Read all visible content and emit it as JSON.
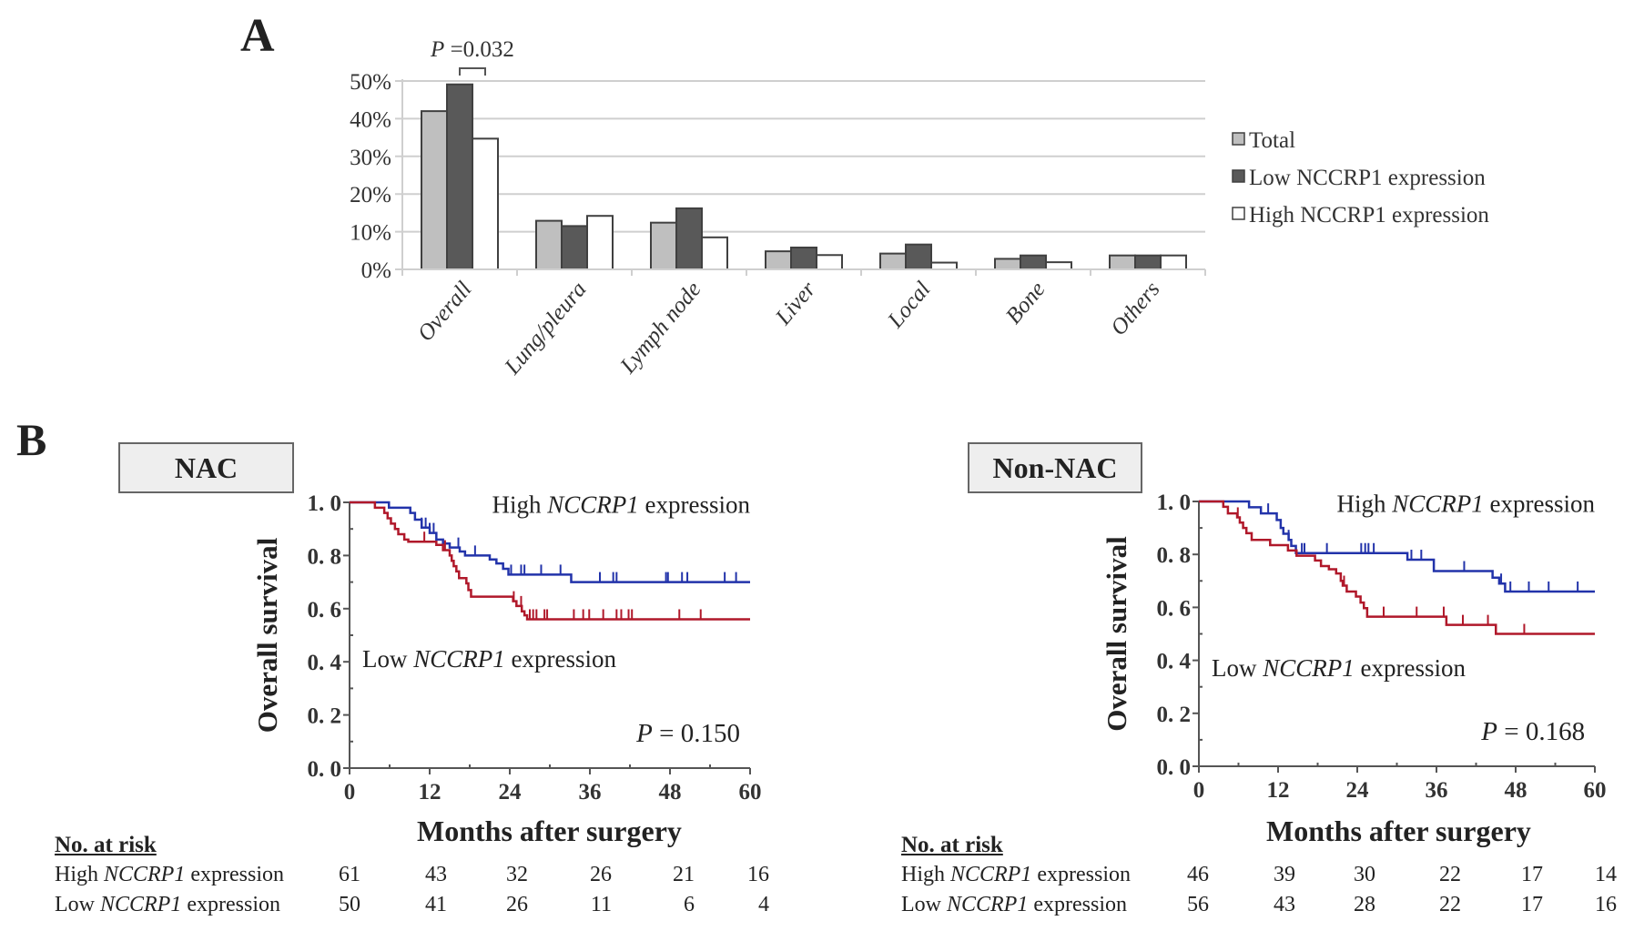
{
  "panel_a": {
    "letter": "A",
    "annotation": {
      "text_p": "P",
      "text_rest": " =0.032",
      "between": [
        "Low NCCRP1 expression",
        "High NCCRP1 expression"
      ],
      "category": "Overall"
    }
  },
  "panel_b": {
    "letter": "B",
    "risk_header": "No. at risk",
    "nac": {
      "box_title": "NAC",
      "ylabel": "Overall survival",
      "xlabel": "Months after surgery",
      "pvalue": "= 0.150",
      "pvalue_p": "P",
      "high_label": {
        "pre": "High ",
        "gene": "NCCRP1",
        "post": " expression"
      },
      "low_label": {
        "pre": "Low ",
        "gene": "NCCRP1",
        "post": " expression"
      },
      "risk_rows": [
        {
          "pre": "High ",
          "gene": "NCCRP1",
          "post": " expression",
          "values": [
            "61",
            "43",
            "32",
            "26",
            "21",
            "16"
          ]
        },
        {
          "pre": "Low ",
          "gene": "NCCRP1",
          "post": " expression",
          "values": [
            "50",
            "41",
            "26",
            "11",
            "6",
            "4"
          ]
        }
      ]
    },
    "non_nac": {
      "box_title": "Non-NAC",
      "ylabel": "Overall survival",
      "xlabel": "Months after surgery",
      "pvalue": "= 0.168",
      "pvalue_p": "P",
      "high_label": {
        "pre": "High ",
        "gene": "NCCRP1",
        "post": " expression"
      },
      "low_label": {
        "pre": "Low ",
        "gene": "NCCRP1",
        "post": " expression"
      },
      "risk_rows": [
        {
          "pre": "High ",
          "gene": "NCCRP1",
          "post": " expression",
          "values": [
            "46",
            "39",
            "30",
            "22",
            "17",
            "14"
          ]
        },
        {
          "pre": "Low ",
          "gene": "NCCRP1",
          "post": " expression",
          "values": [
            "56",
            "43",
            "28",
            "22",
            "17",
            "16"
          ]
        }
      ]
    }
  },
  "colors": {
    "total": "#bfbfbf",
    "low_bar": "#595959",
    "high_bar": "#ffffff",
    "bar_stroke": "#404040",
    "grid": "#cfcfcf",
    "km_high": "#2233aa",
    "km_low": "#b0182a",
    "axis": "#555555"
  },
  "chart_data": [
    {
      "type": "bar",
      "title": "",
      "xlabel": "",
      "ylabel": "",
      "ylim": [
        0,
        50
      ],
      "yticks": [
        "0%",
        "10%",
        "20%",
        "30%",
        "40%",
        "50%"
      ],
      "ytick_values": [
        0,
        10,
        20,
        30,
        40,
        50
      ],
      "grid": true,
      "legend_position": "right",
      "categories": [
        "Overall",
        "Lung/pleura",
        "Lymph node",
        "Liver",
        "Local",
        "Bone",
        "Others"
      ],
      "series": [
        {
          "name": "Total",
          "values": [
            42.0,
            12.9,
            12.4,
            4.8,
            4.2,
            2.8,
            3.7
          ]
        },
        {
          "name": "Low NCCRP1 expression",
          "values": [
            49.1,
            11.5,
            16.2,
            5.8,
            6.6,
            3.7,
            3.7
          ]
        },
        {
          "name": "High NCCRP1 expression",
          "values": [
            34.7,
            14.2,
            8.5,
            3.8,
            1.8,
            1.9,
            3.7
          ]
        }
      ],
      "annotations": [
        "P =0.032"
      ]
    },
    {
      "type": "line",
      "subtype": "kaplan-meier",
      "title": "NAC",
      "xlabel": "Months after surgery",
      "ylabel": "Overall survival",
      "xlim": [
        0,
        60
      ],
      "ylim": [
        0,
        1.0
      ],
      "xticks": [
        "0",
        "12",
        "24",
        "36",
        "48",
        "60"
      ],
      "xtick_values": [
        0,
        12,
        24,
        36,
        48,
        60
      ],
      "yticks": [
        "0. 0",
        "0. 2",
        "0. 4",
        "0. 6",
        "0. 8",
        "1. 0"
      ],
      "ytick_values": [
        0,
        0.2,
        0.4,
        0.6,
        0.8,
        1.0
      ],
      "grid": false,
      "annotations": [
        "P = 0.150"
      ],
      "series": [
        {
          "name": "High NCCRP1 expression",
          "steps": [
            [
              0,
              1.0
            ],
            [
              5.9,
              0.98
            ],
            [
              9.1,
              0.96
            ],
            [
              9.8,
              0.935
            ],
            [
              10.8,
              0.905
            ],
            [
              12.0,
              0.885
            ],
            [
              13.0,
              0.86
            ],
            [
              14.0,
              0.845
            ],
            [
              15.0,
              0.83
            ],
            [
              16.5,
              0.815
            ],
            [
              17.3,
              0.8
            ],
            [
              21.0,
              0.785
            ],
            [
              22.0,
              0.77
            ],
            [
              23.0,
              0.75
            ],
            [
              23.8,
              0.728
            ],
            [
              33.2,
              0.7
            ],
            [
              60,
              0.7
            ]
          ],
          "censored": [
            10.8,
            11.4,
            12.0,
            12.6,
            16.3,
            18.8,
            24.2,
            25.7,
            26.2,
            28.7,
            31.6,
            37.5,
            39.5,
            40.0,
            47.4,
            47.7,
            49.8,
            50.6,
            56.2,
            57.9
          ]
        },
        {
          "name": "Low NCCRP1 expression",
          "steps": [
            [
              0,
              1.0
            ],
            [
              3.8,
              0.98
            ],
            [
              5.2,
              0.96
            ],
            [
              5.7,
              0.94
            ],
            [
              6.2,
              0.92
            ],
            [
              6.8,
              0.9
            ],
            [
              7.3,
              0.88
            ],
            [
              8.2,
              0.86
            ],
            [
              8.8,
              0.852
            ],
            [
              13.0,
              0.84
            ],
            [
              14.0,
              0.82
            ],
            [
              15.0,
              0.8
            ],
            [
              15.3,
              0.78
            ],
            [
              15.6,
              0.76
            ],
            [
              16.0,
              0.74
            ],
            [
              16.4,
              0.715
            ],
            [
              17.5,
              0.695
            ],
            [
              17.8,
              0.67
            ],
            [
              18.2,
              0.645
            ],
            [
              24.5,
              0.628
            ],
            [
              25.0,
              0.61
            ],
            [
              25.8,
              0.59
            ],
            [
              26.2,
              0.575
            ],
            [
              26.6,
              0.56
            ],
            [
              60,
              0.56
            ]
          ],
          "censored": [
            11.2,
            14.3,
            24.6,
            25.7,
            27.0,
            27.5,
            28.0,
            29.2,
            29.6,
            33.6,
            35.0,
            35.9,
            38.0,
            40.0,
            40.7,
            41.8,
            42.3,
            49.4,
            52.6
          ]
        }
      ]
    },
    {
      "type": "line",
      "subtype": "kaplan-meier",
      "title": "Non-NAC",
      "xlabel": "Months after surgery",
      "ylabel": "Overall survival",
      "xlim": [
        0,
        60
      ],
      "ylim": [
        0,
        1.0
      ],
      "xticks": [
        "0",
        "12",
        "24",
        "36",
        "48",
        "60"
      ],
      "xtick_values": [
        0,
        12,
        24,
        36,
        48,
        60
      ],
      "yticks": [
        "0. 0",
        "0. 2",
        "0. 4",
        "0. 6",
        "0. 8",
        "1. 0"
      ],
      "ytick_values": [
        0,
        0.2,
        0.4,
        0.6,
        0.8,
        1.0
      ],
      "grid": false,
      "annotations": [
        "P = 0.168"
      ],
      "series": [
        {
          "name": "High NCCRP1 expression",
          "steps": [
            [
              0,
              1.0
            ],
            [
              7.6,
              0.978
            ],
            [
              9.4,
              0.955
            ],
            [
              11.8,
              0.93
            ],
            [
              12.4,
              0.9
            ],
            [
              12.8,
              0.878
            ],
            [
              13.6,
              0.855
            ],
            [
              14.0,
              0.832
            ],
            [
              14.7,
              0.805
            ],
            [
              31.6,
              0.78
            ],
            [
              35.6,
              0.737
            ],
            [
              44.5,
              0.712
            ],
            [
              45.5,
              0.69
            ],
            [
              46.4,
              0.66
            ],
            [
              60,
              0.66
            ]
          ],
          "censored": [
            10.5,
            13.6,
            15.6,
            16.0,
            19.4,
            24.6,
            25.2,
            25.7,
            26.5,
            32.2,
            33.7,
            40.2,
            45.8,
            47.2,
            50.0,
            53.0,
            57.4
          ]
        },
        {
          "name": "Low NCCRP1 expression",
          "steps": [
            [
              0,
              1.0
            ],
            [
              3.7,
              0.98
            ],
            [
              4.4,
              0.955
            ],
            [
              5.8,
              0.94
            ],
            [
              6.2,
              0.92
            ],
            [
              6.7,
              0.9
            ],
            [
              7.2,
              0.88
            ],
            [
              8.0,
              0.855
            ],
            [
              10.8,
              0.835
            ],
            [
              13.5,
              0.815
            ],
            [
              14.8,
              0.795
            ],
            [
              17.6,
              0.777
            ],
            [
              18.5,
              0.756
            ],
            [
              19.7,
              0.744
            ],
            [
              20.8,
              0.728
            ],
            [
              21.5,
              0.7
            ],
            [
              21.8,
              0.682
            ],
            [
              22.4,
              0.66
            ],
            [
              23.8,
              0.641
            ],
            [
              24.5,
              0.618
            ],
            [
              25.0,
              0.597
            ],
            [
              25.5,
              0.565
            ],
            [
              37.5,
              0.534
            ],
            [
              45.0,
              0.5
            ],
            [
              60,
              0.5
            ]
          ],
          "censored": [
            5.9,
            22.0,
            28.0,
            33.0,
            37.1,
            40.0,
            43.8,
            49.3
          ]
        }
      ]
    }
  ]
}
